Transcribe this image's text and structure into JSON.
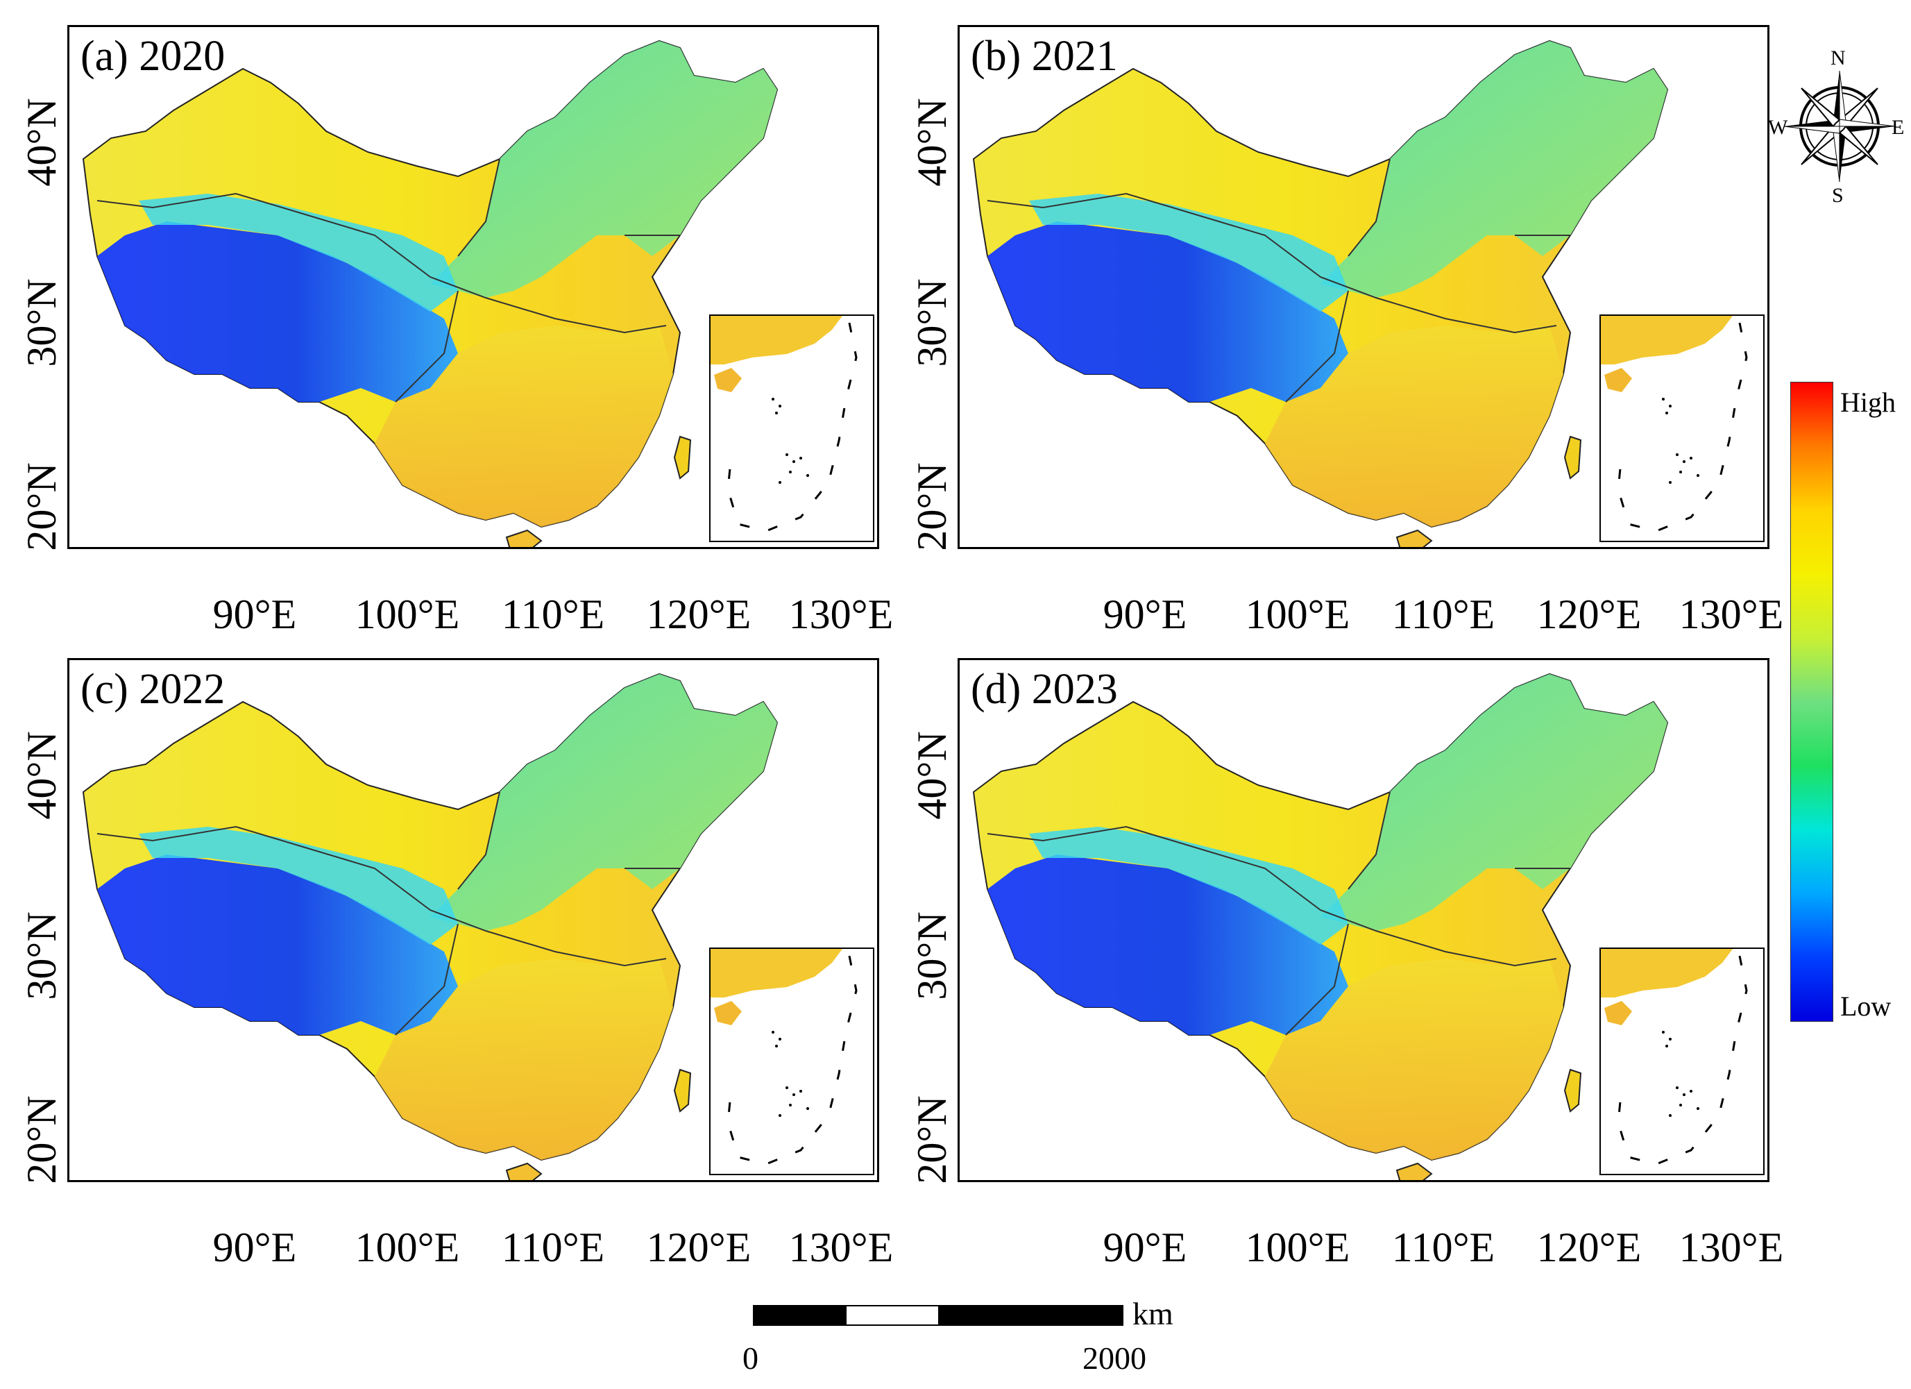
{
  "figure": {
    "panels": [
      {
        "label": "(a) 2020"
      },
      {
        "label": "(b) 2021"
      },
      {
        "label": "(c) 2022"
      },
      {
        "label": "(d) 2023"
      }
    ],
    "lat_labels": [
      "40°N",
      "30°N",
      "20°N"
    ],
    "lon_labels": [
      "90°E",
      "100°E",
      "110°E",
      "120°E",
      "130°E"
    ]
  },
  "legend": {
    "high_label": "High",
    "low_label": "Low",
    "colors": [
      "#ff0000",
      "#ff7a00",
      "#ffd400",
      "#f5f000",
      "#c8f034",
      "#6fe080",
      "#1ee060",
      "#00e6d8",
      "#00a8ff",
      "#0040ff",
      "#0000e0"
    ]
  },
  "scale_bar": {
    "unit": "km",
    "start_label": "0",
    "end_label": "2000"
  },
  "north_arrow": {
    "n": "N",
    "s": "S",
    "e": "E",
    "w": "W"
  }
}
